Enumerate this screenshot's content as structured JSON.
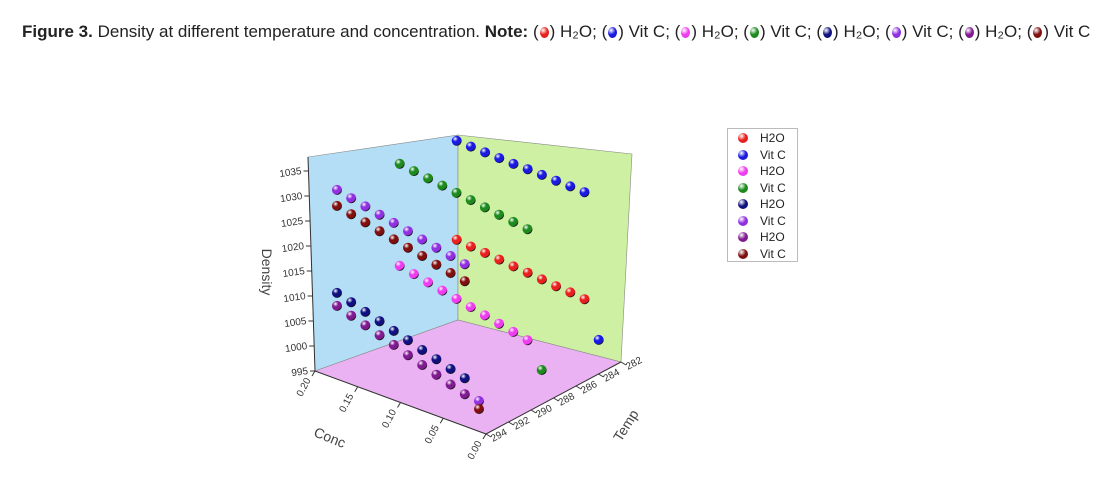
{
  "caption": {
    "figure_label": "Figure 3.",
    "text": "Density at different temperature and concentration.",
    "note_label": "Note:",
    "note_items": [
      {
        "label": "H₂O",
        "color": "#e8201e"
      },
      {
        "label": "Vit C",
        "color": "#1a1ae0"
      },
      {
        "label": "H₂O",
        "color": "#ee3cee"
      },
      {
        "label": "Vit C",
        "color": "#1e8a1e"
      },
      {
        "label": "H₂O",
        "color": "#101080"
      },
      {
        "label": "Vit C",
        "color": "#9030e0"
      },
      {
        "label": "H₂O",
        "color": "#801a90"
      },
      {
        "label": "Vit C",
        "color": "#801010"
      }
    ]
  },
  "chart_data": {
    "type": "scatter",
    "subtype": "3d-scatter",
    "xlabel": "Conc",
    "ylabel": "Temp",
    "zlabel": "Density",
    "xlim": [
      0.0,
      0.2
    ],
    "ylim": [
      282,
      294
    ],
    "zlim": [
      995,
      1038
    ],
    "x_ticks": [
      "0.20",
      "0.15",
      "0.10",
      "0.05",
      "0.00"
    ],
    "y_ticks": [
      "282",
      "284",
      "286",
      "288",
      "290",
      "292",
      "294"
    ],
    "z_ticks": [
      "995",
      "1000",
      "1005",
      "1010",
      "1015",
      "1020",
      "1025",
      "1030",
      "1035"
    ],
    "wall_colors": {
      "conc_wall": "#b3def5",
      "temp_wall": "#cdf0a2",
      "floor": "#eab2f2"
    },
    "legend_position": "right",
    "series": [
      {
        "name": "H2O",
        "color": "#e8201e",
        "temp": 283.5,
        "conc": [
          0.2,
          0.18,
          0.16,
          0.14,
          0.12,
          0.1,
          0.08,
          0.06,
          0.04,
          0.02
        ],
        "density": [
          1010.7,
          1010.4,
          1010.2,
          1009.9,
          1009.6,
          1009.4,
          1009.1,
          1008.8,
          1008.6,
          1008.3
        ]
      },
      {
        "name": "Vit C",
        "color": "#1a1ae0",
        "temp": 283.5,
        "conc": [
          0.2,
          0.18,
          0.16,
          0.14,
          0.12,
          0.1,
          0.08,
          0.06,
          0.04,
          0.02,
          0.0
        ],
        "density": [
          1030.5,
          1030.4,
          1030.3,
          1030.2,
          1030.1,
          1030.1,
          1030.0,
          1029.9,
          1029.8,
          1029.7,
          1001.2
        ]
      },
      {
        "name": "H2O",
        "color": "#ee3cee",
        "temp": 288.5,
        "conc": [
          0.2,
          0.18,
          0.16,
          0.14,
          0.12,
          0.1,
          0.08,
          0.06,
          0.04,
          0.02
        ],
        "density": [
          1011.6,
          1011.0,
          1010.4,
          1009.8,
          1009.2,
          1008.6,
          1008.0,
          1007.4,
          1006.8,
          1006.2
        ]
      },
      {
        "name": "Vit C",
        "color": "#1e8a1e",
        "temp": 288.5,
        "conc": [
          0.2,
          0.18,
          0.16,
          0.14,
          0.12,
          0.1,
          0.08,
          0.06,
          0.04,
          0.02,
          0.0
        ],
        "density": [
          1032.0,
          1031.6,
          1031.2,
          1030.8,
          1030.4,
          1030.0,
          1029.6,
          1029.2,
          1028.8,
          1028.4,
          1001.3
        ]
      },
      {
        "name": "H2O",
        "color": "#101080",
        "temp": 294,
        "conc": [
          0.2,
          0.18,
          0.16,
          0.14,
          0.12,
          0.1,
          0.08,
          0.06,
          0.04,
          0.02
        ],
        "density": [
          1012.9,
          1012.1,
          1011.2,
          1010.4,
          1009.5,
          1008.7,
          1007.8,
          1007.0,
          1006.1,
          1005.3
        ]
      },
      {
        "name": "Vit C",
        "color": "#9030e0",
        "temp": 294,
        "conc": [
          0.2,
          0.18,
          0.16,
          0.14,
          0.12,
          0.1,
          0.08,
          0.06,
          0.04,
          0.02,
          0.0
        ],
        "density": [
          1033.5,
          1032.9,
          1032.3,
          1031.7,
          1031.1,
          1030.5,
          1029.9,
          1029.3,
          1028.7,
          1028.1,
          1001.8
        ]
      },
      {
        "name": "H2O",
        "color": "#801a90",
        "temp": 294,
        "conc": [
          0.2,
          0.18,
          0.16,
          0.14,
          0.12,
          0.1,
          0.08,
          0.06,
          0.04,
          0.02
        ],
        "density": [
          1010.3,
          1009.4,
          1008.5,
          1007.6,
          1006.7,
          1005.7,
          1004.8,
          1003.9,
          1003.0,
          1002.1
        ]
      },
      {
        "name": "Vit C",
        "color": "#801010",
        "temp": 294,
        "conc": [
          0.2,
          0.18,
          0.16,
          0.14,
          0.12,
          0.1,
          0.08,
          0.06,
          0.04,
          0.02,
          0.0
        ],
        "density": [
          1030.3,
          1029.7,
          1029.1,
          1028.4,
          1027.8,
          1027.2,
          1026.6,
          1025.9,
          1025.3,
          1024.7,
          1000.2
        ]
      }
    ]
  }
}
